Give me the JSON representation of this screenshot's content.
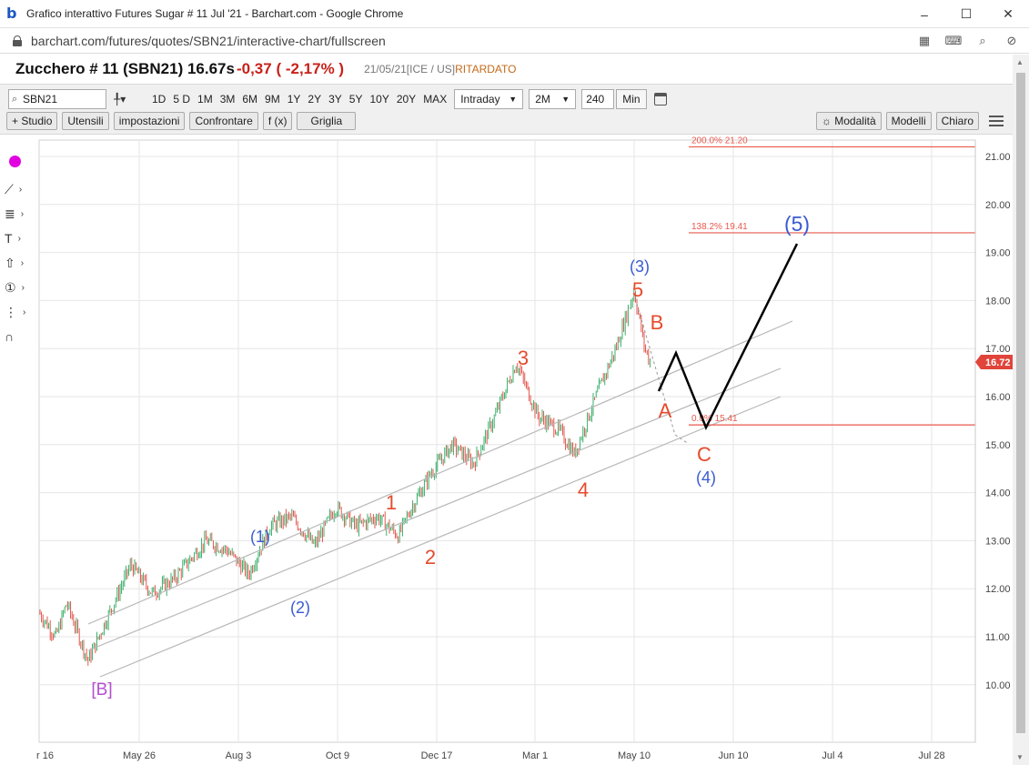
{
  "browser": {
    "window_title": "Grafico interattivo Futures Sugar # 11 Jul '21 - Barchart.com - Google Chrome",
    "favicon_letter": "b",
    "url": "barchart.com/futures/quotes/SBN21/interactive-chart/fullscreen",
    "window_buttons": [
      "–",
      "☐",
      "✕"
    ]
  },
  "quote": {
    "name": "Zucchero # 11 (SBN21) 16.67s",
    "change": "-0,37 ( -2,17% )",
    "meta": "21/05/21[ICE / US]",
    "delayed": "RITARDATO",
    "colors": {
      "negative": "#c8221a",
      "delayed": "#c46a1a"
    }
  },
  "toolbar": {
    "symbol": "SBN21",
    "ranges": [
      "1D",
      "5 D",
      "1M",
      "3M",
      "6M",
      "9M",
      "1Y",
      "2Y",
      "3Y",
      "5Y",
      "10Y",
      "20Y",
      "MAX"
    ],
    "interval_select": "Intraday",
    "period_select": "2M",
    "minutes_value": "240",
    "minutes_label": "Min",
    "buttons": [
      "+ Studio",
      "Utensili",
      "impostazioni",
      "Confrontare",
      "f (x)",
      "Griglia"
    ],
    "right_buttons": [
      "☼ Modalità",
      "Modelli",
      "Chiaro"
    ]
  },
  "chart_data": {
    "type": "line",
    "title": "",
    "series": [
      {
        "name": "",
        "x": [
          "2020-04-16",
          "2020-04-27",
          "2020-05-04",
          "2020-05-18",
          "2020-06-01",
          "2020-06-15",
          "2020-06-29",
          "2020-07-13",
          "2020-08-03",
          "2020-08-17",
          "2020-08-31",
          "2020-09-14",
          "2020-09-28",
          "2020-10-13",
          "2020-10-27",
          "2020-11-09",
          "2020-11-23",
          "2020-12-07",
          "2020-12-14",
          "2020-12-28",
          "2021-01-11",
          "2021-01-25",
          "2021-02-08",
          "2021-02-22",
          "2021-03-08",
          "2021-03-22",
          "2021-04-01",
          "2021-04-15",
          "2021-04-28",
          "2021-05-10",
          "2021-05-17",
          "2021-05-21"
        ],
        "y": [
          11.5,
          11.0,
          11.7,
          10.5,
          11.5,
          12.5,
          11.9,
          12.2,
          13.0,
          12.8,
          12.3,
          13.3,
          13.5,
          12.9,
          13.7,
          13.3,
          13.5,
          13.1,
          13.6,
          14.4,
          15.0,
          14.6,
          15.6,
          16.7,
          15.6,
          15.3,
          14.8,
          16.0,
          17.0,
          18.2,
          17.0,
          16.67
        ]
      }
    ],
    "last_value_label": "16.72",
    "y_tick_labels": [
      "21.00",
      "20.00",
      "19.00",
      "18.00",
      "17.00",
      "16.00",
      "15.00",
      "14.00",
      "13.00",
      "12.00",
      "11.00",
      "10.00"
    ],
    "x_tick_labels": [
      "r 16",
      "May 26",
      "Aug 3",
      "Oct 9",
      "Dec 17",
      "Mar 1",
      "May 10",
      "Jun 10",
      "Jul 4",
      "Jul 28"
    ],
    "fib_levels": [
      {
        "label": "200.0% 21.20",
        "value": 21.2
      },
      {
        "label": "138.2% 19.41",
        "value": 19.41
      },
      {
        "label": "0.0% 15.41",
        "value": 15.41
      }
    ],
    "wave_labels": [
      "[B]",
      "(1)",
      "(2)",
      "1",
      "2",
      "3",
      "4",
      "(3)",
      "5",
      "B",
      "A",
      "C",
      "(4)",
      "(5)"
    ],
    "grid": true,
    "colors": {
      "candle_up": "#26a65b",
      "candle_down": "#e0443a",
      "fib": "#e8594c",
      "wave_red": "#e54a2b",
      "wave_blue": "#3a5bd1",
      "wave_purple": "#b44fd0",
      "last_value_bg": "#e0443a"
    }
  }
}
